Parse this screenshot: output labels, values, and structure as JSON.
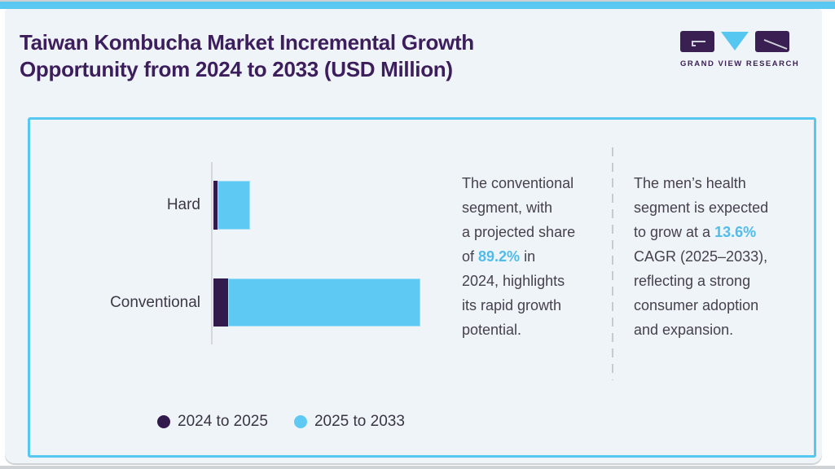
{
  "page": {
    "title_line1": "Taiwan Kombucha Market Incremental Growth",
    "title_line2": "Opportunity from 2024 to 2033 (USD Million)"
  },
  "logo": {
    "text": "GRAND VIEW RESEARCH"
  },
  "chart_data": {
    "type": "bar",
    "orientation": "horizontal",
    "stacked": true,
    "title": "Taiwan Kombucha Market Incremental Growth Opportunity from 2024 to 2033 (USD Million)",
    "categories": [
      "Hard",
      "Conventional"
    ],
    "series": [
      {
        "name": "2024 to 2025",
        "color": "#321a4d",
        "values": [
          2.0,
          7.2
        ]
      },
      {
        "name": "2025 to 2033",
        "color": "#5ec9f3",
        "values": [
          15.8,
          92.8
        ]
      }
    ],
    "xlabel": "",
    "ylabel": "",
    "value_axis_labeled": false,
    "values_note": "Bar axis is unlabeled; values are relative units estimated from bar lengths with Conventional total = 100.",
    "grid": false,
    "legend_position": "bottom"
  },
  "insights": [
    {
      "before": "The conventional\nsegment, with\na projected share\nof ",
      "accent": "89.2%",
      "after": " in\n2024, highlights\nits rapid growth\npotential."
    },
    {
      "before": "The men’s health\nsegment is expected\nto grow at a ",
      "accent": "13.6%",
      "after": "\nCAGR (2025–2033),\nreflecting a strong\nconsumer adoption\nand expansion."
    }
  ],
  "colors": {
    "accent_cyan": "#4fbcec",
    "top_strip_cyan": "#5ac8f0",
    "panel_border_cyan": "#56c7f0",
    "title_purple": "#3c1e5c",
    "logo_purple": "#3a2052",
    "logo_cyan": "#56c7f0",
    "bar_dark_purple": "#321a4d",
    "bar_light_blue": "#5ec9f3",
    "card_background": "#eff4f9"
  }
}
